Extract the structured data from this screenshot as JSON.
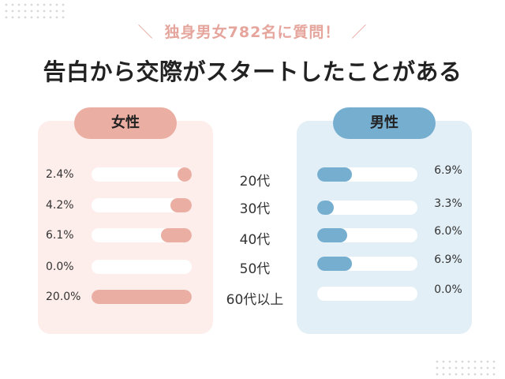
{
  "header": {
    "subtitle": "独身男女782名に質問！",
    "slash_left": "＼",
    "slash_right": "／",
    "title": "告白から交際がスタートしたことがある"
  },
  "colors": {
    "female": "#ebaea3",
    "male": "#76aed0",
    "female_panel": "#fdeeeb",
    "male_panel": "#e3eff6",
    "subtitle": "#e5a59c"
  },
  "chart_data": {
    "type": "bar",
    "categories": [
      "20代",
      "30代",
      "40代",
      "50代",
      "60代以上"
    ],
    "series": [
      {
        "name": "女性",
        "values": [
          2.4,
          4.2,
          6.1,
          0.0,
          20.0
        ],
        "labels": [
          "2.4%",
          "4.2%",
          "6.1%",
          "0.0%",
          "20.0%"
        ]
      },
      {
        "name": "男性",
        "values": [
          6.9,
          3.3,
          6.0,
          6.9,
          0.0
        ],
        "labels": [
          "6.9%",
          "3.3%",
          "6.0%",
          "6.9%",
          "0.0%"
        ]
      }
    ],
    "xlim": [
      0,
      20
    ],
    "orientation": "horizontal-butterfly",
    "unit": "%"
  }
}
